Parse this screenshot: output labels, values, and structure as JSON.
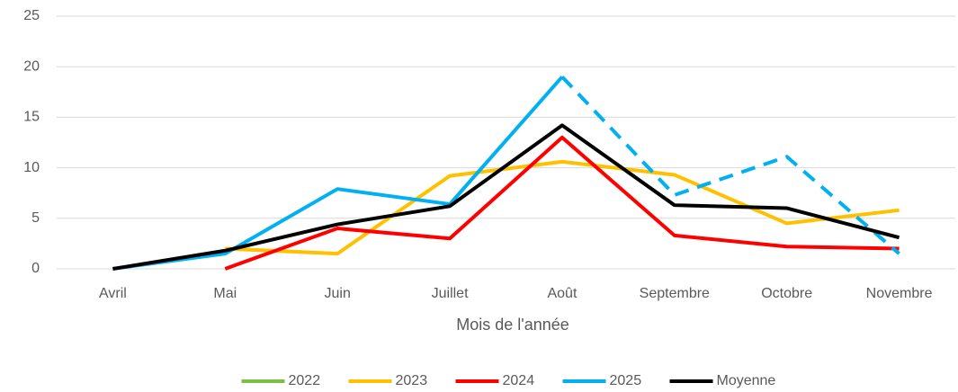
{
  "chart_data": {
    "type": "line",
    "x_label": "Mois de l'année",
    "categories": [
      "Avril",
      "Mai",
      "Juin",
      "Juillet",
      "Août",
      "Septembre",
      "Octobre",
      "Novembre"
    ],
    "series": [
      {
        "name": "2022",
        "color": "#7ac143",
        "values": [
          null,
          null,
          null,
          null,
          null,
          null,
          null,
          null
        ]
      },
      {
        "name": "2023",
        "color": "#ffc000",
        "values": [
          null,
          2,
          1.5,
          9.2,
          10.6,
          9.3,
          4.5,
          5.8
        ]
      },
      {
        "name": "2024",
        "color": "#ff0000",
        "values": [
          null,
          0,
          4,
          3,
          13,
          3.3,
          2.2,
          2
        ]
      },
      {
        "name": "2025",
        "color": "#00b0f0",
        "values": [
          0,
          1.5,
          7.9,
          6.4,
          19,
          7.3,
          11.1,
          1.5
        ],
        "dashed_from": 4
      },
      {
        "name": "Moyenne",
        "color": "#000000",
        "values": [
          0,
          1.8,
          4.4,
          6.2,
          14.2,
          6.3,
          6,
          3.1
        ]
      }
    ],
    "ylim": [
      0,
      25
    ],
    "yticks": [
      0,
      5,
      10,
      15,
      20,
      25
    ],
    "grid": true,
    "legend": "bottom"
  }
}
